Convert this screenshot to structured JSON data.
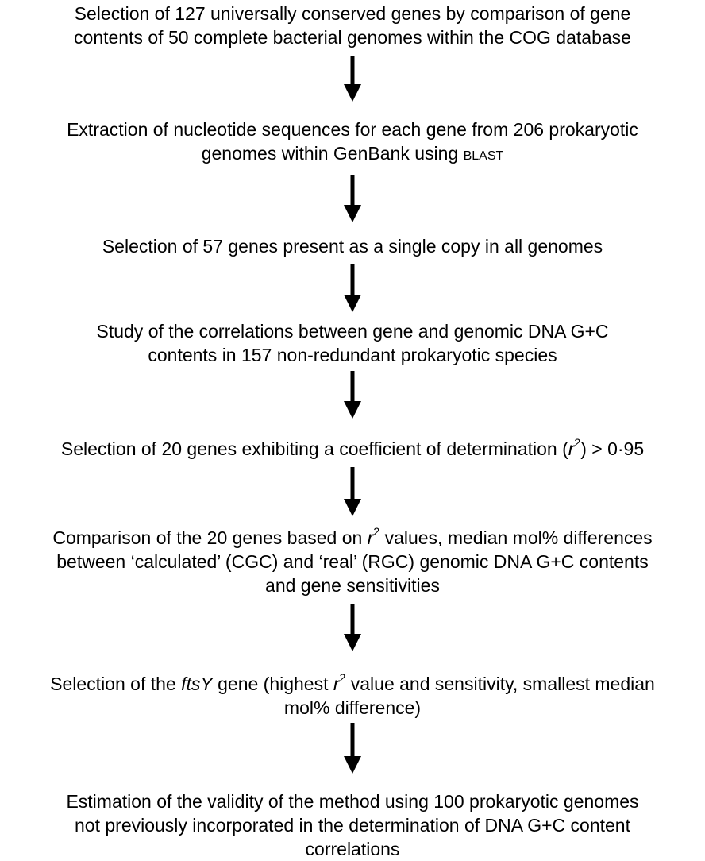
{
  "flowchart": {
    "steps": [
      {
        "id": "step1",
        "lines": [
          "Selection of 127 universally conserved genes by comparison of gene",
          "contents of 50 complete bacterial genomes within the COG database"
        ]
      },
      {
        "id": "step2",
        "lines": [
          "Extraction of nucleotide sequences for each gene from 206 prokaryotic"
        ],
        "line2_prefix": "genomes within GenBank using ",
        "line2_smallcaps": "BLAST"
      },
      {
        "id": "step3",
        "lines": [
          "Selection of 57 genes present as a single copy in all genomes"
        ]
      },
      {
        "id": "step4",
        "lines": [
          "Study of the correlations between gene and genomic DNA G+C",
          "contents in 157 non-redundant prokaryotic species"
        ]
      },
      {
        "id": "step5",
        "prefix": "Selection of 20 genes exhibiting a coefficient of determination (",
        "r": "r",
        "sup": "2",
        "suffix": ") > 0·95"
      },
      {
        "id": "step6",
        "line1_prefix": "Comparison of the 20 genes based on ",
        "line1_r": "r",
        "line1_sup": "2",
        "line1_suffix": " values, median mol% differences",
        "lines": [
          "between ‘calculated’ (CGC) and ‘real’ (RGC) genomic DNA G+C contents",
          "and gene sensitivities"
        ]
      },
      {
        "id": "step7",
        "line1_prefix": "Selection of the ",
        "line1_gene": "ftsY",
        "line1_mid": " gene (highest ",
        "line1_r": "r",
        "line1_sup": "2",
        "line1_suffix": " value and sensitivity, smallest median",
        "lines": [
          "mol% difference)"
        ]
      },
      {
        "id": "step8",
        "lines": [
          "Estimation of the validity of the method using 100 prokaryotic genomes",
          "not previously incorporated in the determination of DNA G+C content",
          "correlations"
        ]
      }
    ]
  }
}
